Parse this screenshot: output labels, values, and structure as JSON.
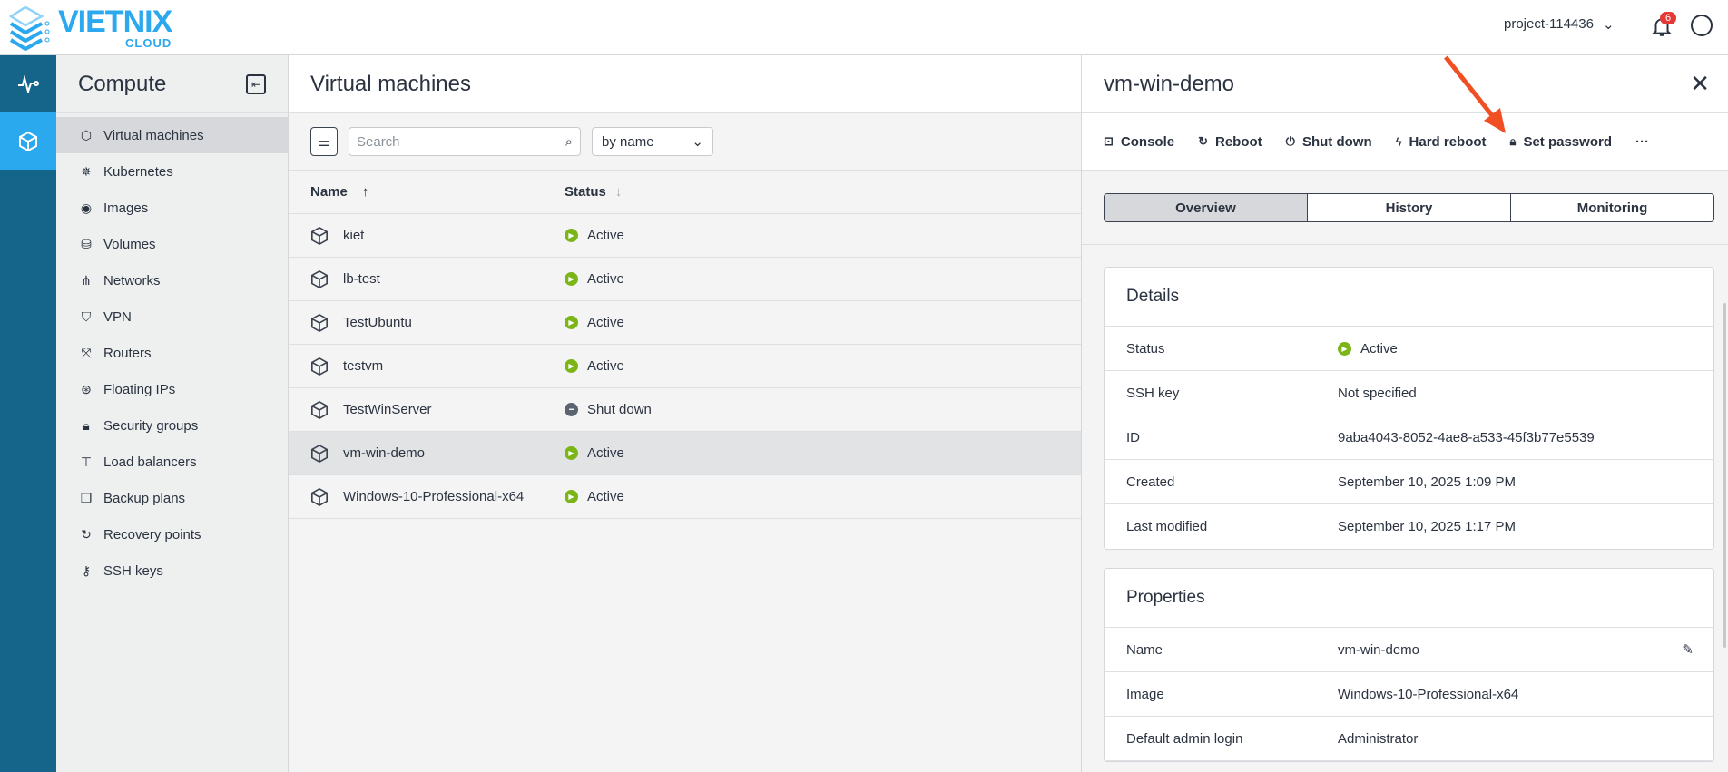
{
  "brand": {
    "name": "VIETNIX",
    "sub": "CLOUD",
    "color": "#2ba8ee"
  },
  "header": {
    "project": "project-114436",
    "notifications": "6"
  },
  "rail": {
    "items": [
      {
        "icon": "activity-icon"
      },
      {
        "icon": "cube-icon",
        "active": true
      }
    ]
  },
  "sidebar": {
    "title": "Compute",
    "items": [
      {
        "label": "Virtual machines",
        "icon": "cube-icon",
        "active": true
      },
      {
        "label": "Kubernetes",
        "icon": "helm-icon"
      },
      {
        "label": "Images",
        "icon": "disc-icon"
      },
      {
        "label": "Volumes",
        "icon": "drive-icon"
      },
      {
        "label": "Networks",
        "icon": "network-icon"
      },
      {
        "label": "VPN",
        "icon": "shield-icon"
      },
      {
        "label": "Routers",
        "icon": "router-icon"
      },
      {
        "label": "Floating IPs",
        "icon": "ip-icon"
      },
      {
        "label": "Security groups",
        "icon": "lock-icon"
      },
      {
        "label": "Load balancers",
        "icon": "sitemap-icon"
      },
      {
        "label": "Backup plans",
        "icon": "copy-icon"
      },
      {
        "label": "Recovery points",
        "icon": "restore-icon"
      },
      {
        "label": "SSH keys",
        "icon": "key-icon"
      }
    ]
  },
  "main": {
    "title": "Virtual machines",
    "search_placeholder": "Search",
    "sort": "by name",
    "columns": {
      "name": "Name",
      "status": "Status"
    },
    "rows": [
      {
        "name": "kiet",
        "status": "Active"
      },
      {
        "name": "lb-test",
        "status": "Active"
      },
      {
        "name": "TestUbuntu",
        "status": "Active"
      },
      {
        "name": "testvm",
        "status": "Active"
      },
      {
        "name": "TestWinServer",
        "status": "Shut down"
      },
      {
        "name": "vm-win-demo",
        "status": "Active",
        "selected": true
      },
      {
        "name": "Windows-10-Professional-x64",
        "status": "Active"
      }
    ]
  },
  "colors": {
    "active": "#7cb518",
    "shutdown": "#5b6370",
    "annotation_arrow": "#f04e23"
  },
  "panel": {
    "title": "vm-win-demo",
    "actions": [
      "Console",
      "Reboot",
      "Shut down",
      "Hard reboot",
      "Set password"
    ],
    "more": "···",
    "tabs": [
      "Overview",
      "History",
      "Monitoring"
    ],
    "details": {
      "title": "Details",
      "rows": [
        {
          "k": "Status",
          "v": "Active"
        },
        {
          "k": "SSH key",
          "v": "Not specified"
        },
        {
          "k": "ID",
          "v": "9aba4043-8052-4ae8-a533-45f3b77e5539"
        },
        {
          "k": "Created",
          "v": "September 10, 2025 1:09 PM"
        },
        {
          "k": "Last modified",
          "v": "September 10, 2025 1:17 PM"
        }
      ]
    },
    "properties": {
      "title": "Properties",
      "rows": [
        {
          "k": "Name",
          "v": "vm-win-demo"
        },
        {
          "k": "Image",
          "v": "Windows-10-Professional-x64"
        },
        {
          "k": "Default admin login",
          "v": "Administrator"
        }
      ]
    }
  }
}
